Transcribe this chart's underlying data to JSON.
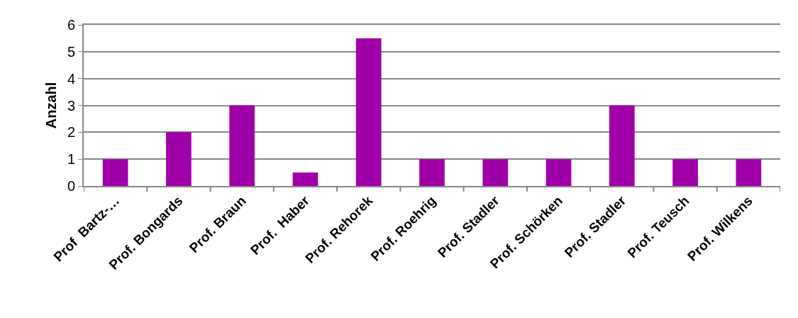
{
  "chart_data": {
    "type": "bar",
    "ylabel": "Anzahl",
    "categories": [
      "Prof  Bartz-…",
      "Prof. Bongards",
      "Prof. Braun",
      "Prof.  Haber",
      "Prof. Rehorek",
      "Prof. Roehrig",
      "Prof. Stadler",
      "Prof. Schörken",
      "Prof. Stadler",
      "Prof. Teusch",
      "Prof. Wilkens"
    ],
    "values": [
      1,
      2,
      3,
      0.5,
      5.5,
      1,
      1,
      1,
      3,
      1,
      1
    ],
    "color": "#a000a8",
    "ylim": [
      0,
      6
    ],
    "yticks": [
      0,
      1,
      2,
      3,
      4,
      5,
      6
    ],
    "grid": "y"
  }
}
